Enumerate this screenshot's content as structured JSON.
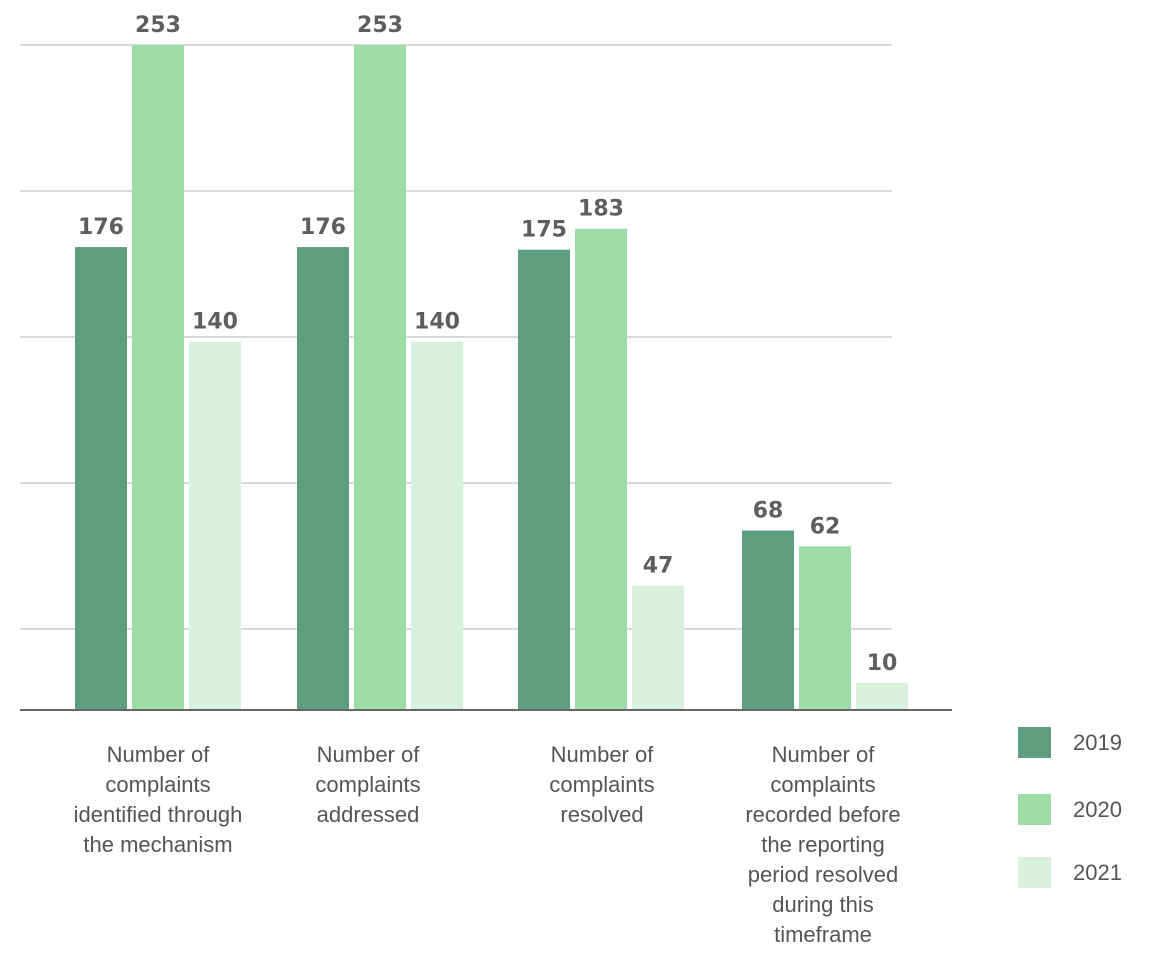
{
  "chart_data": {
    "type": "bar",
    "title": "",
    "xlabel": "",
    "ylabel": "",
    "ylim": [
      0,
      253
    ],
    "grid": true,
    "legend_position": "right",
    "categories": [
      "Number of complaints identified through the mechanism",
      "Number of complaints addressed",
      "Number of complaints resolved",
      "Number of complaints recorded before the reporting period resolved during this timeframe"
    ],
    "category_lines": [
      [
        "Number of",
        "complaints",
        "identified through",
        "the mechanism"
      ],
      [
        "Number of",
        "complaints",
        "addressed"
      ],
      [
        "Number of",
        "complaints",
        "resolved"
      ],
      [
        "Number of",
        "complaints",
        "recorded before",
        "the reporting",
        "period resolved",
        "during this",
        "timeframe"
      ]
    ],
    "series": [
      {
        "name": "2019",
        "color": "#5c9e7e",
        "values": [
          176,
          176,
          175,
          68
        ]
      },
      {
        "name": "2020",
        "color": "#9ddca6",
        "values": [
          253,
          253,
          183,
          62
        ]
      },
      {
        "name": "2021",
        "color": "#d8f1dc",
        "values": [
          140,
          140,
          47,
          10
        ]
      }
    ]
  }
}
